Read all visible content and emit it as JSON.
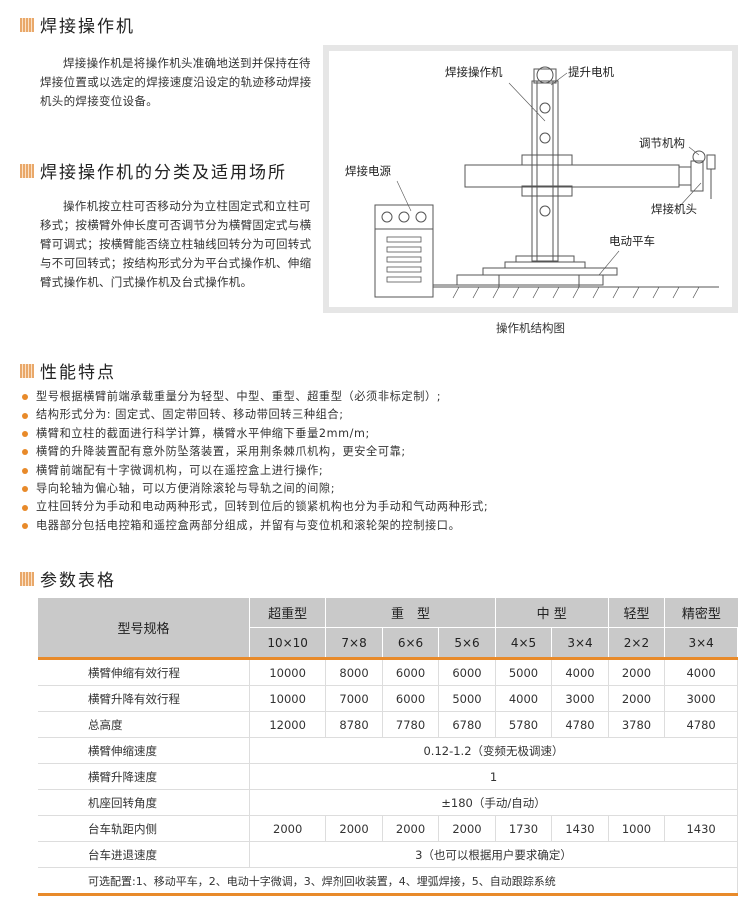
{
  "sections": {
    "s1": {
      "title": "焊接操作机",
      "text": "焊接操作机是将操作机头准确地送到并保持在待焊接位置或以选定的焊接速度沿设定的轨迹移动焊接机头的焊接变位设备。"
    },
    "s2": {
      "title": "焊接操作机的分类及适用场所",
      "text": "操作机按立柱可否移动分为立柱固定式和立柱可移式；按横臂外伸长度可否调节分为横臂固定式与横臂可调式；按横臂能否绕立柱轴线回转分为可回转式与不可回转式；按结构形式分为平台式操作机、伸缩臂式操作机、门式操作机及台式操作机。"
    },
    "s3": {
      "title": "性能特点",
      "items": [
        "型号根据横臂前端承载重量分为轻型、中型、重型、超重型（必须非标定制）;",
        "结构形式分为: 固定式、固定带回转、移动带回转三种组合;",
        "横臂和立柱的截面进行科学计算，横臂水平伸缩下垂量2mm/m;",
        "横臂的升降装置配有意外防坠落装置，采用荆条棘爪机构，更安全可靠;",
        "横臂前端配有十字微调机构，可以在遥控盒上进行操作;",
        "导向轮轴为偏心轴，可以方便消除滚轮与导轨之间的间隙;",
        "立柱回转分为手动和电动两种形式，回转到位后的锁紧机构也分为手动和气动两种形式;",
        "电器部分包括电控箱和遥控盒两部分组成，并留有与变位机和滚轮架的控制接口。"
      ]
    },
    "s4": {
      "title": "参数表格"
    }
  },
  "diagram": {
    "caption": "操作机结构图",
    "labels": {
      "machine": "焊接操作机",
      "motor": "提升电机",
      "adjust": "调节机构",
      "power": "焊接电源",
      "head": "焊接机头",
      "cart": "电动平车"
    }
  },
  "table": {
    "corner": "型号规格",
    "groups": [
      "超重型",
      "重　型",
      "中 型",
      "轻型",
      "精密型"
    ],
    "models": [
      "10×10",
      "7×8",
      "6×6",
      "5×6",
      "4×5",
      "3×4",
      "2×2",
      "3×4"
    ],
    "rows": [
      {
        "label": "横臂伸缩有效行程",
        "values": [
          "10000",
          "8000",
          "6000",
          "6000",
          "5000",
          "4000",
          "2000",
          "4000"
        ]
      },
      {
        "label": "横臂升降有效行程",
        "values": [
          "10000",
          "7000",
          "6000",
          "5000",
          "4000",
          "3000",
          "2000",
          "3000"
        ]
      },
      {
        "label": "总高度",
        "values": [
          "12000",
          "8780",
          "7780",
          "6780",
          "5780",
          "4780",
          "3780",
          "4780"
        ]
      },
      {
        "label": "横臂伸缩速度",
        "span": "0.12-1.2（变频无极调速）"
      },
      {
        "label": "横臂升降速度",
        "span": "1"
      },
      {
        "label": "机座回转角度",
        "span": "±180（手动/自动）"
      },
      {
        "label": "台车轨距内侧",
        "values": [
          "2000",
          "2000",
          "2000",
          "2000",
          "1730",
          "1430",
          "1000",
          "1430"
        ]
      },
      {
        "label": "台车进退速度",
        "span": "3（也可以根据用户要求确定）"
      }
    ],
    "options": "可选配置:1、移动平车，2、电动十字微调，3、焊剂回收装置，4、埋弧焊接，5、自动跟踪系统"
  },
  "colors": {
    "accent": "#e88a2a",
    "header_bg": "#c9c9c9"
  }
}
